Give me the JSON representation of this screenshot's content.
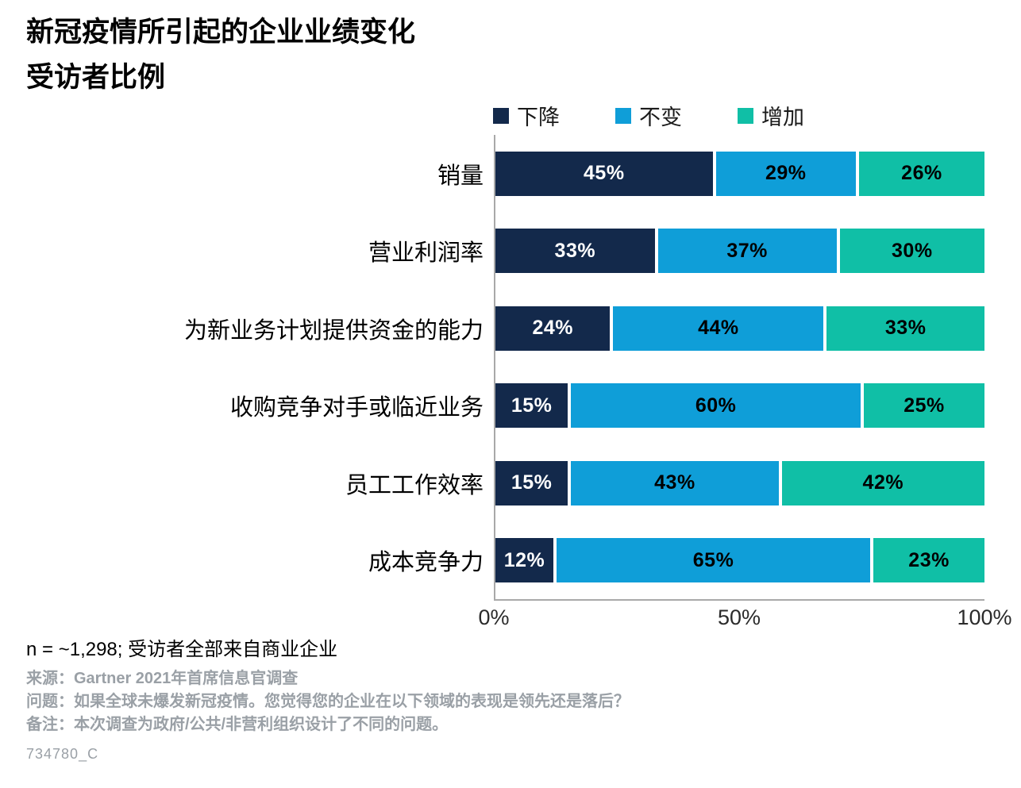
{
  "title": {
    "line1": "新冠疫情所引起的企业业绩变化",
    "line2": "受访者比例"
  },
  "chart_data": {
    "type": "bar",
    "orientation": "horizontal",
    "stacked": true,
    "title": "新冠疫情所引起的企业业绩变化",
    "subtitle": "受访者比例",
    "categories": [
      "销量",
      "营业利润率",
      "为新业务计划提供资金的能力",
      "收购竞争对手或临近业务",
      "员工工作效率",
      "成本竞争力"
    ],
    "series": [
      {
        "name": "下降",
        "color": "#13294b",
        "text_color": "#ffffff",
        "values": [
          45,
          33,
          24,
          15,
          15,
          12
        ]
      },
      {
        "name": "不变",
        "color": "#0f9ed8",
        "text_color": "#000000",
        "values": [
          29,
          37,
          44,
          60,
          43,
          65
        ]
      },
      {
        "name": "增加",
        "color": "#10bfa6",
        "text_color": "#000000",
        "values": [
          26,
          30,
          33,
          25,
          42,
          23
        ]
      }
    ],
    "value_suffix": "%",
    "xlim": [
      0,
      100
    ],
    "x_ticks": [
      {
        "label": "0%",
        "value": 0
      },
      {
        "label": "50%",
        "value": 50
      },
      {
        "label": "100%",
        "value": 100
      }
    ],
    "legend_position": "top",
    "grid": false
  },
  "footer": {
    "n_line": "n = ~1,298; 受访者全部来自商业企业",
    "source": "来源：Gartner 2021年首席信息官调查",
    "question": "问题：如果全球未爆发新冠疫情。您觉得您的企业在以下领域的表现是领先还是落后？",
    "note": "备注：本次调查为政府/公共/非营利组织设计了不同的问题。",
    "doc_id": "734780_C"
  }
}
